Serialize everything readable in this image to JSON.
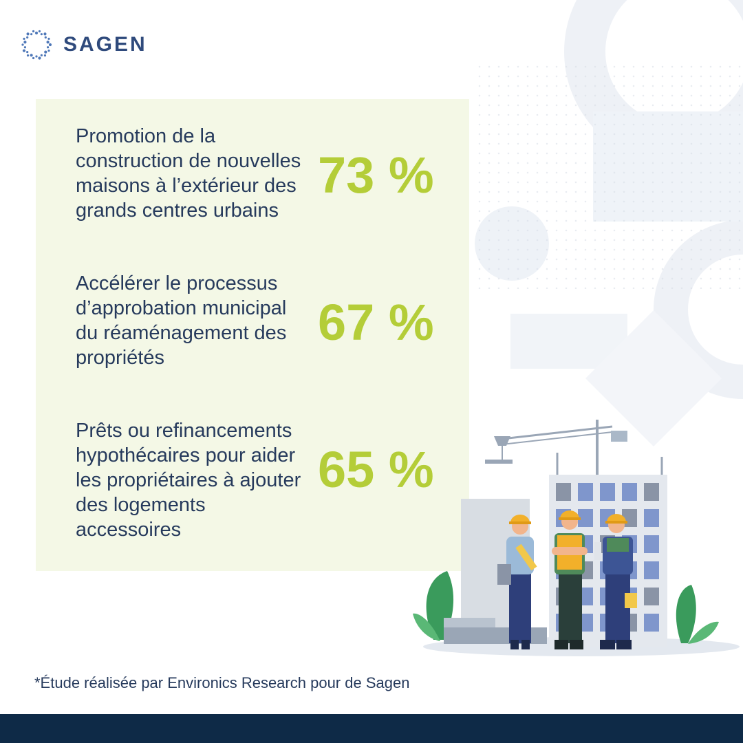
{
  "brand": {
    "name": "SAGEN"
  },
  "stats": [
    {
      "label": "Promotion de la construction de nouvelles maisons à l’extérieur des grands centres urbains",
      "value": "73 %"
    },
    {
      "label": "Accélérer le processus d’approbation municipal du réaménagement des propriétés",
      "value": "67 %"
    },
    {
      "label": "Prêts ou refinancements hypothécaires pour aider les propriétaires à ajouter des logements accessoires",
      "value": "65 %"
    }
  ],
  "footnote": "*Étude réalisée par Environics Research pour de Sagen",
  "colors": {
    "accent": "#b4cd38",
    "text": "#263a5c",
    "panel": "#f4f8e6",
    "footer": "#0e2a47",
    "brand": "#2f4a7c"
  },
  "illustration": {
    "icon": "construction-workers-illustration"
  }
}
